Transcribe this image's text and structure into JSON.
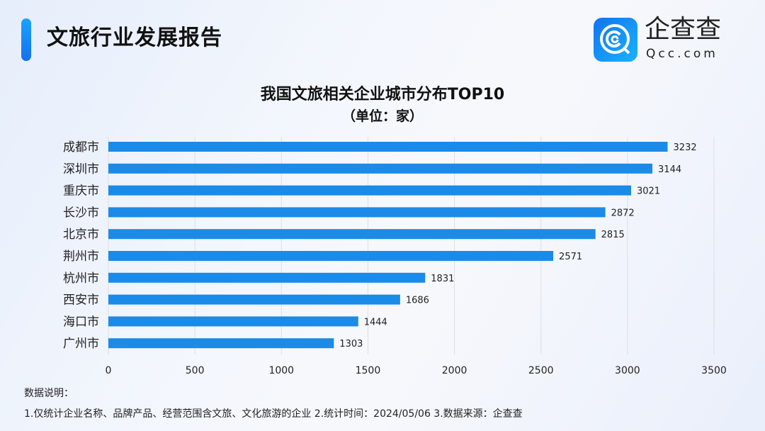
{
  "header": {
    "title": "文旅行业发展报告"
  },
  "brand": {
    "name": "企查查",
    "domain": "Qcc.com",
    "logo_color": "#1677f2"
  },
  "chart_data": {
    "type": "bar",
    "orientation": "horizontal",
    "title": "我国文旅相关企业城市分布TOP10",
    "subtitle": "（单位：家）",
    "categories": [
      "成都市",
      "深圳市",
      "重庆市",
      "长沙市",
      "北京市",
      "荆州市",
      "杭州市",
      "西安市",
      "海口市",
      "广州市"
    ],
    "values": [
      3232,
      3144,
      3021,
      2872,
      2815,
      2571,
      1831,
      1686,
      1444,
      1303
    ],
    "xlim": [
      0,
      3500
    ],
    "xticks": [
      0,
      500,
      1000,
      1500,
      2000,
      2500,
      3000,
      3500
    ],
    "grid": true,
    "bar_color": "#1a8be8"
  },
  "notes": {
    "heading": "数据说明：",
    "text": "1.仅统计企业名称、品牌产品、经营范围含文旅、文化旅游的企业  2.统计时间：2024/05/06   3.数据来源：企查查"
  }
}
